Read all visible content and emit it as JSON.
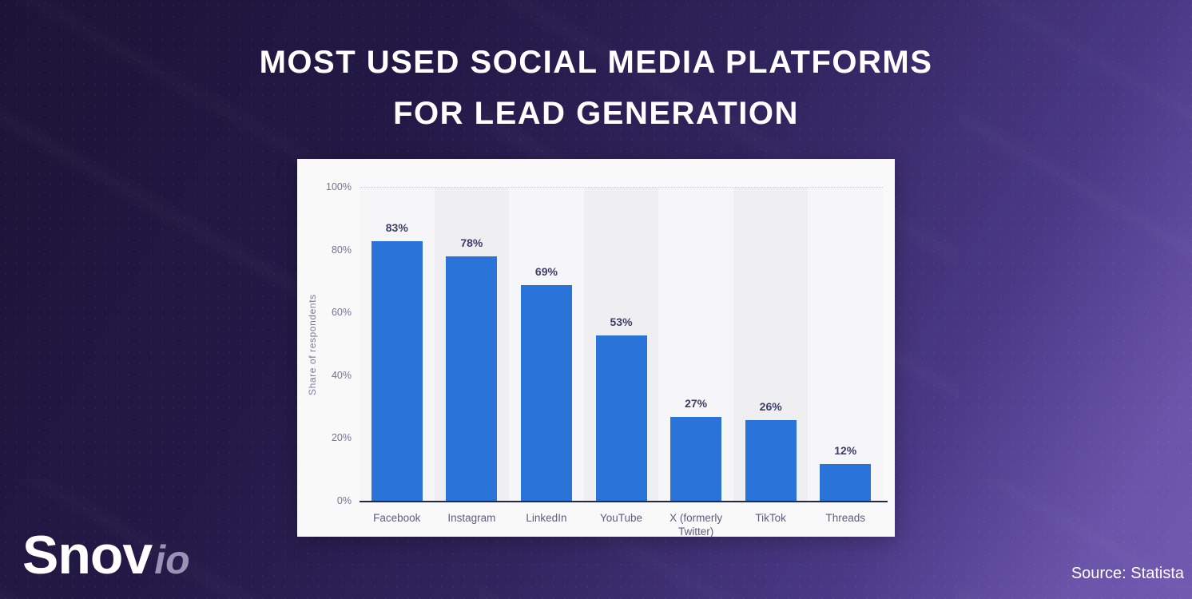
{
  "header": {
    "title_line1": "MOST USED SOCIAL MEDIA PLATFORMS",
    "title_line2": "FOR LEAD GENERATION"
  },
  "branding": {
    "logo_main": "Snov",
    "logo_suffix": "io"
  },
  "footer": {
    "source": "Source: Statista"
  },
  "chart_data": {
    "type": "bar",
    "title": "MOST USED SOCIAL MEDIA PLATFORMS FOR LEAD GENERATION",
    "categories": [
      "Facebook",
      "Instagram",
      "LinkedIn",
      "YouTube",
      "X (formerly Twitter)",
      "TikTok",
      "Threads"
    ],
    "values": [
      83,
      78,
      69,
      53,
      27,
      26,
      12
    ],
    "value_labels": [
      "83%",
      "78%",
      "69%",
      "53%",
      "27%",
      "26%",
      "12%"
    ],
    "xlabel": "",
    "ylabel": "Share of respondents",
    "ylim": [
      0,
      100
    ],
    "yticks": [
      0,
      20,
      40,
      60,
      80,
      100
    ],
    "ytick_labels": [
      "0%",
      "20%",
      "40%",
      "60%",
      "80%",
      "100%"
    ],
    "grid": "horizontal-dotted",
    "legend": "none",
    "bar_color": "#2a73d8",
    "panel_background": "#f9f9fa",
    "stripe_color": "#efeff2",
    "background_gradient": [
      "#1c1336",
      "#7059af"
    ]
  }
}
